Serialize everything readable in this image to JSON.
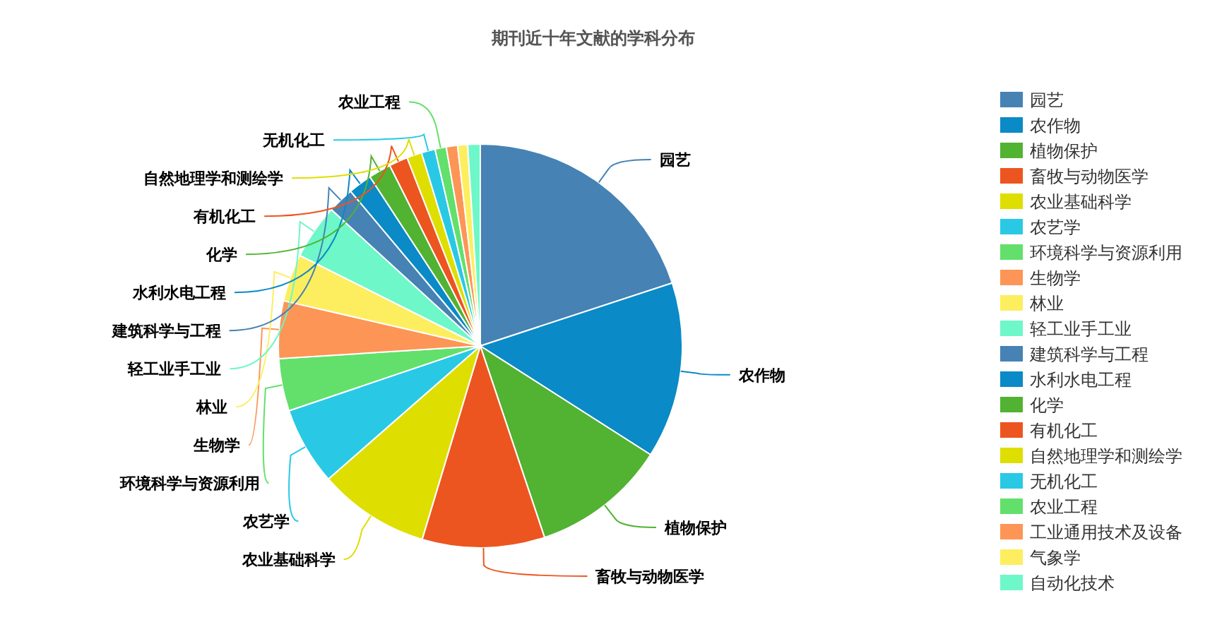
{
  "chart_data": {
    "type": "pie",
    "title": "期刊近十年文献的学科分布",
    "legend": "top right",
    "categories": [
      "园艺",
      "农作物",
      "植物保护",
      "畜牧与动物医学",
      "农业基础科学",
      "农艺学",
      "环境科学与资源利用",
      "生物学",
      "林业",
      "轻工业手工业",
      "建筑科学与工程",
      "水利水电工程",
      "化学",
      "有机化工",
      "自然地理学和测绘学",
      "无机化工",
      "农业工程",
      "工业通用技术及设备",
      "气象学",
      "自动化技术"
    ],
    "values": [
      19.95,
      14.1,
      10.8,
      9.8,
      8.9,
      6.25,
      4.2,
      4.6,
      3.8,
      4.4,
      2.1,
      1.9,
      1.8,
      1.5,
      1.2,
      1.1,
      0.9,
      0.9,
      0.8,
      1.0
    ],
    "colors": [
      "#4682b4",
      "#0a8ac6",
      "#52b232",
      "#ec5520",
      "#dede00",
      "#29c9e5",
      "#62e06b",
      "#fd9556",
      "#fdee60",
      "#6ef7c8",
      "#4682b4",
      "#0a8ac6",
      "#52b232",
      "#ec5520",
      "#dede00",
      "#29c9e5",
      "#62e06b",
      "#fd9556",
      "#fdee60",
      "#6ef7c8"
    ]
  }
}
